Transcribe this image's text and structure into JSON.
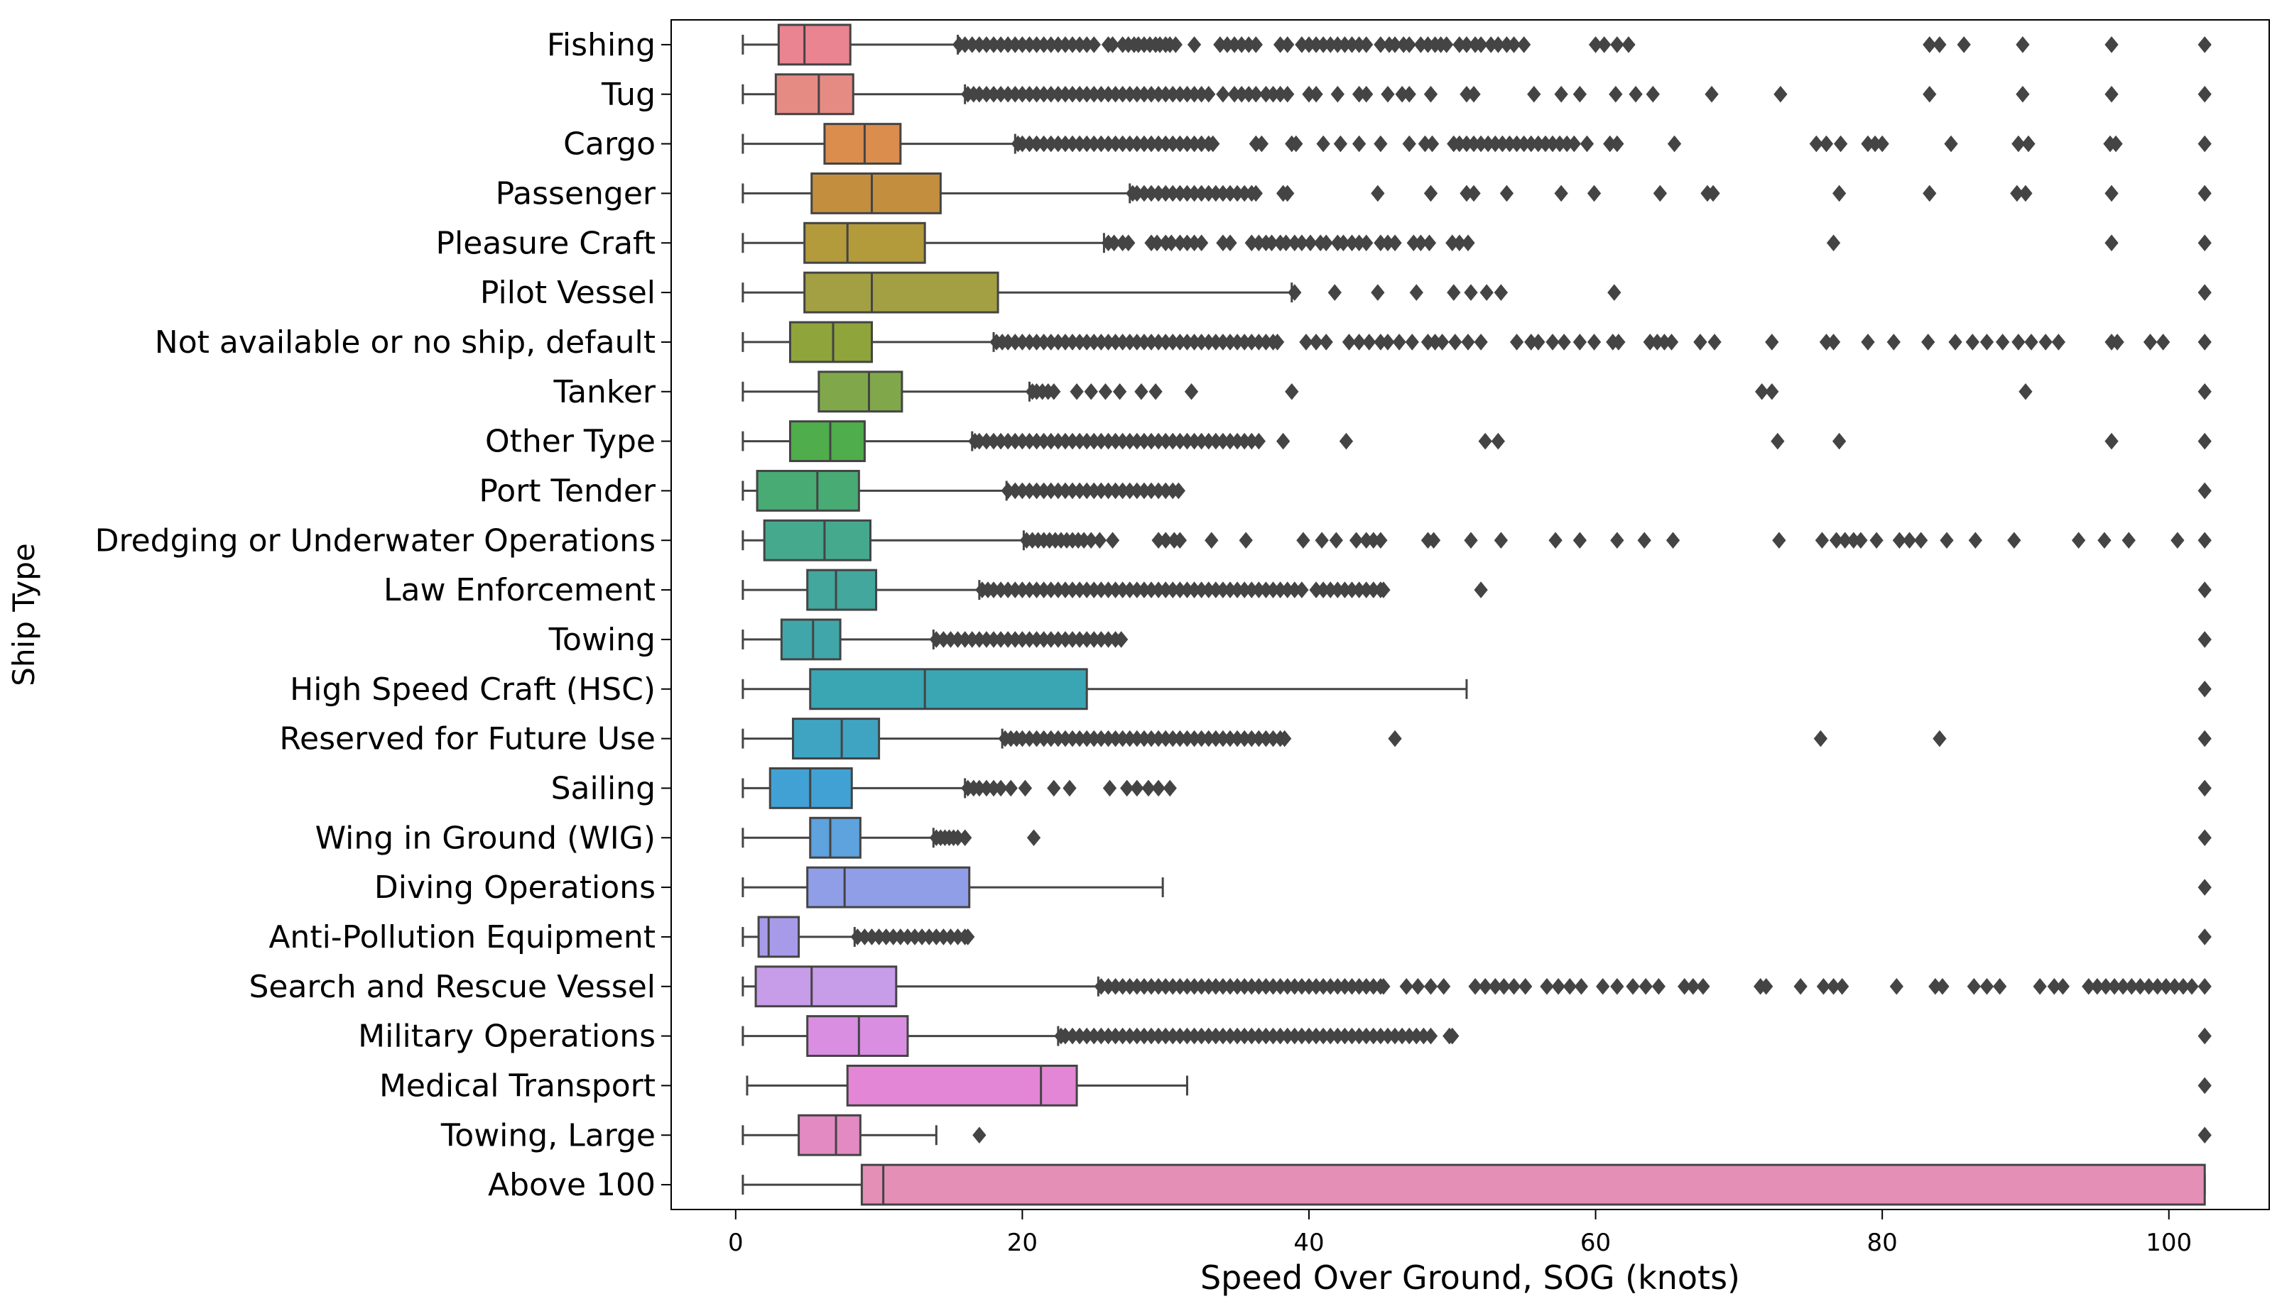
{
  "chart_data": {
    "type": "boxplot",
    "orientation": "horizontal",
    "title": "",
    "xlabel": "Speed Over Ground, SOG (knots)",
    "ylabel": "Ship Type",
    "xlim": [
      -4.5,
      107
    ],
    "xticks": [
      0,
      20,
      40,
      60,
      80,
      100
    ],
    "grid": false,
    "categories": [
      "Fishing",
      "Tug",
      "Cargo",
      "Passenger",
      "Pleasure Craft",
      "Pilot Vessel",
      "Not available or no ship, default",
      "Tanker",
      "Other Type",
      "Port Tender",
      "Dredging or Underwater Operations",
      "Law Enforcement",
      "Towing",
      "High Speed Craft (HSC)",
      "Reserved for Future Use",
      "Sailing",
      "Wing in Ground (WIG)",
      "Diving Operations",
      "Anti-Pollution Equipment",
      "Search and Rescue Vessel",
      "Military Operations",
      "Medical Transport",
      "Towing, Large",
      "Above 100"
    ],
    "colors": [
      "#ea8490",
      "#e68a84",
      "#db8d4e",
      "#c38f3f",
      "#b39a3a",
      "#a3a043",
      "#8fa43a",
      "#80a84a",
      "#4fad4b",
      "#49ab74",
      "#45a98e",
      "#43a79d",
      "#40a6aa",
      "#3aa6b4",
      "#3ea4c1",
      "#42a1d4",
      "#5ea2de",
      "#8f9ee6",
      "#a79be9",
      "#c79ce8",
      "#d98ee2",
      "#e386d6",
      "#e38ac2",
      "#e48fb6"
    ],
    "boxes": [
      {
        "whislo": 0.5,
        "q1": 3.0,
        "med": 4.8,
        "q3": 8.0,
        "whishi": 15.5,
        "outliers": [
          15.6,
          16,
          16.5,
          17,
          17.5,
          18,
          18.5,
          19,
          19.5,
          20,
          20.5,
          21,
          21.5,
          22,
          22.5,
          23,
          23.5,
          24,
          24.5,
          25,
          26,
          26.3,
          27,
          27.4,
          27.8,
          28.1,
          28.5,
          28.9,
          29.3,
          29.6,
          30,
          30.3,
          30.7,
          32,
          33.8,
          34.3,
          34.8,
          35.3,
          35.8,
          36.3,
          38,
          38.5,
          39.5,
          40,
          40.5,
          41,
          41.5,
          42,
          42.5,
          43,
          43.5,
          44,
          45,
          45.6,
          46,
          46.6,
          47,
          47.8,
          48.3,
          48.8,
          49.2,
          49.6,
          50.5,
          51,
          51.6,
          52,
          52.7,
          53.2,
          53.8,
          54.3,
          55,
          60,
          60.6,
          61.5,
          62.3,
          83.3,
          84,
          85.7,
          89.8,
          96,
          102.5
        ]
      },
      {
        "whislo": 0.5,
        "q1": 2.8,
        "med": 5.8,
        "q3": 8.2,
        "whishi": 16,
        "outliers": [
          16.2,
          16.6,
          17,
          17.5,
          18,
          18.5,
          19,
          19.5,
          20,
          20.5,
          21,
          21.5,
          22,
          22.5,
          23,
          23.5,
          24,
          24.5,
          25,
          25.5,
          26,
          26.5,
          27,
          27.5,
          28,
          28.5,
          29,
          29.5,
          30,
          30.5,
          31,
          31.5,
          32,
          32.5,
          33,
          34,
          34.8,
          35.3,
          35.8,
          36.3,
          37,
          37.5,
          38,
          38.5,
          40,
          40.5,
          42,
          43.5,
          44,
          45.5,
          46.5,
          47,
          48.5,
          51,
          51.5,
          55.7,
          57.6,
          58.9,
          61.4,
          62.8,
          64,
          68.1,
          72.9,
          83.3,
          89.8,
          96,
          102.5
        ]
      },
      {
        "whislo": 0.5,
        "q1": 6.2,
        "med": 9.0,
        "q3": 11.5,
        "whishi": 19.5,
        "outliers": [
          19.7,
          20,
          20.5,
          21,
          21.5,
          22,
          22.5,
          23,
          23.5,
          24,
          24.5,
          25,
          25.5,
          26,
          26.5,
          27,
          27.5,
          28,
          28.5,
          29,
          29.5,
          30,
          30.5,
          31,
          31.5,
          32,
          32.5,
          33,
          33.3,
          36.3,
          36.7,
          38.8,
          39.1,
          41,
          42.2,
          43.5,
          45,
          47,
          48.1,
          48.6,
          50.1,
          50.5,
          51,
          51.5,
          52,
          52.5,
          53,
          53.5,
          54,
          54.5,
          55,
          55.5,
          56,
          56.5,
          57,
          57.5,
          58,
          58.5,
          59.4,
          61,
          61.5,
          65.5,
          75.4,
          76.1,
          77.1,
          79,
          79.5,
          80,
          84.8,
          89.5,
          90.2,
          95.9,
          96.3,
          102.5
        ]
      },
      {
        "whislo": 0.5,
        "q1": 5.3,
        "med": 9.5,
        "q3": 14.3,
        "whishi": 27.5,
        "outliers": [
          27.7,
          28,
          28.5,
          29,
          29.5,
          30,
          30.5,
          31,
          31.5,
          32,
          32.5,
          33,
          33.5,
          34,
          34.5,
          35,
          35.5,
          36,
          36.3,
          38.2,
          38.5,
          44.8,
          48.5,
          51,
          51.5,
          53.8,
          57.6,
          59.9,
          64.5,
          67.8,
          68.2,
          77,
          83.3,
          89.4,
          90,
          96,
          102.5
        ]
      },
      {
        "whislo": 0.5,
        "q1": 4.8,
        "med": 7.8,
        "q3": 13.2,
        "whishi": 25.7,
        "outliers": [
          26,
          26.4,
          27,
          27.4,
          29,
          29.4,
          30,
          30.4,
          31,
          31.5,
          32,
          32.5,
          34,
          34.5,
          36,
          36.5,
          37,
          37.4,
          38,
          38.4,
          39,
          39.5,
          40.1,
          40.8,
          41.2,
          42,
          42.4,
          43,
          43.5,
          44,
          45,
          45.5,
          46,
          47.3,
          47.8,
          48.4,
          50,
          50.5,
          51.1,
          76.6,
          96,
          102.5
        ]
      },
      {
        "whislo": 0.5,
        "q1": 4.8,
        "med": 9.5,
        "q3": 18.3,
        "whishi": 38.8,
        "outliers": [
          39,
          41.8,
          44.8,
          47.5,
          50.1,
          51.3,
          52.4,
          53.4,
          61.3,
          102.5
        ]
      },
      {
        "whislo": 0.5,
        "q1": 3.8,
        "med": 6.8,
        "q3": 9.5,
        "whishi": 18,
        "outliers": [
          18.2,
          18.6,
          19,
          19.5,
          20,
          20.5,
          21,
          21.5,
          22,
          22.5,
          23,
          23.5,
          24,
          24.5,
          25,
          25.5,
          26,
          26.5,
          27,
          27.5,
          28,
          28.5,
          29,
          29.5,
          30,
          30.5,
          31,
          31.5,
          32,
          32.5,
          33,
          33.5,
          34,
          34.5,
          35,
          35.5,
          36,
          36.5,
          37,
          37.5,
          37.8,
          39.8,
          40.5,
          41.2,
          42.8,
          43.5,
          44.2,
          45,
          45.5,
          46.3,
          47.2,
          48.3,
          48.8,
          49.3,
          50.2,
          51.1,
          52,
          54.5,
          55.5,
          56,
          57,
          57.8,
          58.9,
          59.9,
          61.2,
          61.6,
          63.8,
          64.3,
          64.8,
          65.3,
          67.3,
          68.3,
          72.3,
          76.1,
          76.6,
          79,
          80.8,
          83.2,
          85.1,
          86.3,
          87.3,
          88.4,
          89.5,
          90.4,
          91.4,
          92.3,
          96,
          96.4,
          98.7,
          99.6,
          102.5
        ]
      },
      {
        "whislo": 0.5,
        "q1": 5.8,
        "med": 9.3,
        "q3": 11.6,
        "whishi": 20.5,
        "outliers": [
          20.7,
          21,
          21.4,
          21.8,
          22.2,
          23.8,
          24.8,
          25.8,
          26.8,
          28.3,
          29.3,
          31.8,
          38.8,
          71.6,
          72.3,
          90,
          102.5
        ]
      },
      {
        "whislo": 0.5,
        "q1": 3.8,
        "med": 6.6,
        "q3": 9.0,
        "whishi": 16.5,
        "outliers": [
          16.7,
          17,
          17.5,
          18,
          18.5,
          19,
          19.5,
          20,
          20.5,
          21,
          21.5,
          22,
          22.5,
          23,
          23.5,
          24,
          24.5,
          25,
          25.5,
          26,
          26.5,
          27,
          27.5,
          28,
          28.5,
          29,
          29.5,
          30,
          30.5,
          31,
          31.5,
          32,
          32.5,
          33,
          33.5,
          34,
          34.5,
          35,
          35.5,
          36,
          36.5,
          38.2,
          42.6,
          52.3,
          53.2,
          72.7,
          77,
          96,
          102.5
        ]
      },
      {
        "whislo": 0.5,
        "q1": 1.5,
        "med": 5.7,
        "q3": 8.6,
        "whishi": 18.9,
        "outliers": [
          19,
          19.5,
          20,
          20.5,
          21,
          21.5,
          22,
          22.5,
          23,
          23.5,
          24,
          24.5,
          25,
          25.5,
          26,
          26.5,
          27,
          27.5,
          28,
          28.5,
          29,
          29.5,
          30,
          30.5,
          30.9,
          102.5
        ]
      },
      {
        "whislo": 0.5,
        "q1": 2.0,
        "med": 6.2,
        "q3": 9.4,
        "whishi": 20.1,
        "outliers": [
          20.3,
          20.7,
          21.1,
          21.5,
          21.9,
          22.3,
          22.7,
          23.1,
          23.5,
          23.9,
          24.3,
          24.8,
          25.4,
          26.3,
          29.5,
          30,
          30.6,
          31,
          33.2,
          35.6,
          39.6,
          40.9,
          41.9,
          43.3,
          44,
          44.5,
          45,
          48.3,
          48.7,
          51.3,
          53.4,
          57.2,
          58.9,
          61.5,
          63.4,
          65.4,
          72.8,
          75.8,
          76.8,
          77.4,
          78,
          78.5,
          79.6,
          81.2,
          81.9,
          82.7,
          84.5,
          86.5,
          89.2,
          93.7,
          95.5,
          97.2,
          100.6,
          102.5
        ]
      },
      {
        "whislo": 0.5,
        "q1": 5.0,
        "med": 7.0,
        "q3": 9.8,
        "whishi": 17,
        "outliers": [
          17.2,
          17.6,
          18,
          18.5,
          19,
          19.5,
          20,
          20.5,
          21,
          21.5,
          22,
          22.5,
          23,
          23.5,
          24,
          24.5,
          25,
          25.5,
          26,
          26.5,
          27,
          27.5,
          28,
          28.5,
          29,
          29.5,
          30,
          30.5,
          31,
          31.5,
          32,
          32.5,
          33,
          33.5,
          34,
          34.5,
          35,
          35.5,
          36,
          36.5,
          37,
          37.5,
          38,
          38.5,
          39,
          39.5,
          40.5,
          41,
          41.5,
          42,
          42.5,
          43,
          43.5,
          44,
          44.5,
          45,
          45.2,
          52,
          102.5
        ]
      },
      {
        "whislo": 0.5,
        "q1": 3.2,
        "med": 5.4,
        "q3": 7.3,
        "whishi": 13.8,
        "outliers": [
          14,
          14.5,
          15,
          15.5,
          16,
          16.5,
          17,
          17.5,
          18,
          18.5,
          19,
          19.5,
          20,
          20.5,
          21,
          21.5,
          22,
          22.5,
          23,
          23.5,
          24,
          24.5,
          25,
          25.5,
          26,
          26.5,
          26.9,
          102.5
        ]
      },
      {
        "whislo": 0.5,
        "q1": 5.2,
        "med": 13.2,
        "q3": 24.5,
        "whishi": 51,
        "outliers": [
          102.5
        ]
      },
      {
        "whislo": 0.5,
        "q1": 4.0,
        "med": 7.4,
        "q3": 10.0,
        "whishi": 18.6,
        "outliers": [
          18.8,
          19.2,
          19.6,
          20,
          20.5,
          21,
          21.5,
          22,
          22.5,
          23,
          23.5,
          24,
          24.5,
          25,
          25.5,
          26,
          26.5,
          27,
          27.5,
          28,
          28.5,
          29,
          29.5,
          30,
          30.5,
          31,
          31.5,
          32,
          32.5,
          33,
          33.5,
          34,
          34.5,
          35,
          35.5,
          36,
          36.5,
          37,
          37.5,
          38,
          38.3,
          46,
          75.7,
          84,
          102.5
        ]
      },
      {
        "whislo": 0.5,
        "q1": 2.4,
        "med": 5.2,
        "q3": 8.1,
        "whishi": 16,
        "outliers": [
          16.2,
          16.6,
          17,
          17.5,
          18,
          18.5,
          19.2,
          20.2,
          22.2,
          23.3,
          26.1,
          27.3,
          28,
          28.8,
          29.5,
          30.3,
          102.5
        ]
      },
      {
        "whislo": 0.5,
        "q1": 5.2,
        "med": 6.6,
        "q3": 8.7,
        "whishi": 13.8,
        "outliers": [
          14,
          14.3,
          14.6,
          14.9,
          15.2,
          15.5,
          16,
          20.8,
          102.5
        ]
      },
      {
        "whislo": 0.5,
        "q1": 5.0,
        "med": 7.6,
        "q3": 16.3,
        "whishi": 29.8,
        "outliers": [
          102.5
        ]
      },
      {
        "whislo": 0.5,
        "q1": 1.6,
        "med": 2.3,
        "q3": 4.4,
        "whishi": 8.3,
        "outliers": [
          8.5,
          9,
          9.5,
          10,
          10.5,
          11,
          11.5,
          12,
          12.5,
          13,
          13.5,
          14,
          14.5,
          15,
          15.5,
          16,
          16.2,
          102.5
        ]
      },
      {
        "whislo": 0.5,
        "q1": 1.4,
        "med": 5.3,
        "q3": 11.2,
        "whishi": 25.3,
        "outliers": [
          25.5,
          26,
          26.5,
          27,
          27.5,
          28,
          28.5,
          29,
          29.5,
          30,
          30.5,
          31,
          31.5,
          32,
          32.5,
          33,
          33.5,
          34,
          34.5,
          35,
          35.5,
          36,
          36.5,
          37,
          37.5,
          38,
          38.5,
          39,
          39.5,
          40,
          40.5,
          41,
          41.5,
          42,
          42.5,
          43,
          43.5,
          44,
          44.5,
          45,
          45.2,
          46.8,
          47.6,
          48.5,
          49.4,
          51.6,
          52.3,
          53,
          53.6,
          54.3,
          55.1,
          56.6,
          57.4,
          58.2,
          59,
          60.5,
          61.5,
          62.6,
          63.5,
          64.4,
          66.2,
          66.8,
          67.5,
          71.5,
          71.9,
          74.3,
          75.9,
          76.6,
          77.2,
          81,
          83.7,
          84.2,
          86.4,
          87.3,
          88.2,
          91,
          92,
          92.6,
          94.4,
          95,
          95.6,
          96.2,
          96.8,
          97.4,
          98,
          98.6,
          99.2,
          99.8,
          100.4,
          101,
          101.6,
          102.5
        ]
      },
      {
        "whislo": 0.5,
        "q1": 5.0,
        "med": 8.6,
        "q3": 12.0,
        "whishi": 22.5,
        "outliers": [
          22.7,
          23,
          23.5,
          24,
          24.5,
          25,
          25.5,
          26,
          26.5,
          27,
          27.5,
          28,
          28.5,
          29,
          29.5,
          30,
          30.5,
          31,
          31.5,
          32,
          32.5,
          33,
          33.5,
          34,
          34.5,
          35,
          35.5,
          36,
          36.5,
          37,
          37.5,
          38,
          38.5,
          39,
          39.5,
          40,
          40.5,
          41,
          41.5,
          42,
          42.5,
          43,
          43.5,
          44,
          44.5,
          45,
          45.5,
          46,
          46.5,
          47,
          47.5,
          48,
          48.5,
          49.8,
          50,
          102.5
        ]
      },
      {
        "whislo": 0.8,
        "q1": 7.8,
        "med": 21.3,
        "q3": 23.8,
        "whishi": 31.5,
        "outliers": [
          102.5
        ]
      },
      {
        "whislo": 0.5,
        "q1": 4.4,
        "med": 7.0,
        "q3": 8.7,
        "whishi": 14,
        "outliers": [
          17,
          102.5
        ]
      },
      {
        "whislo": 0.5,
        "q1": 8.8,
        "med": 10.3,
        "q3": 102.5,
        "whishi": 102.5,
        "outliers": []
      }
    ]
  }
}
